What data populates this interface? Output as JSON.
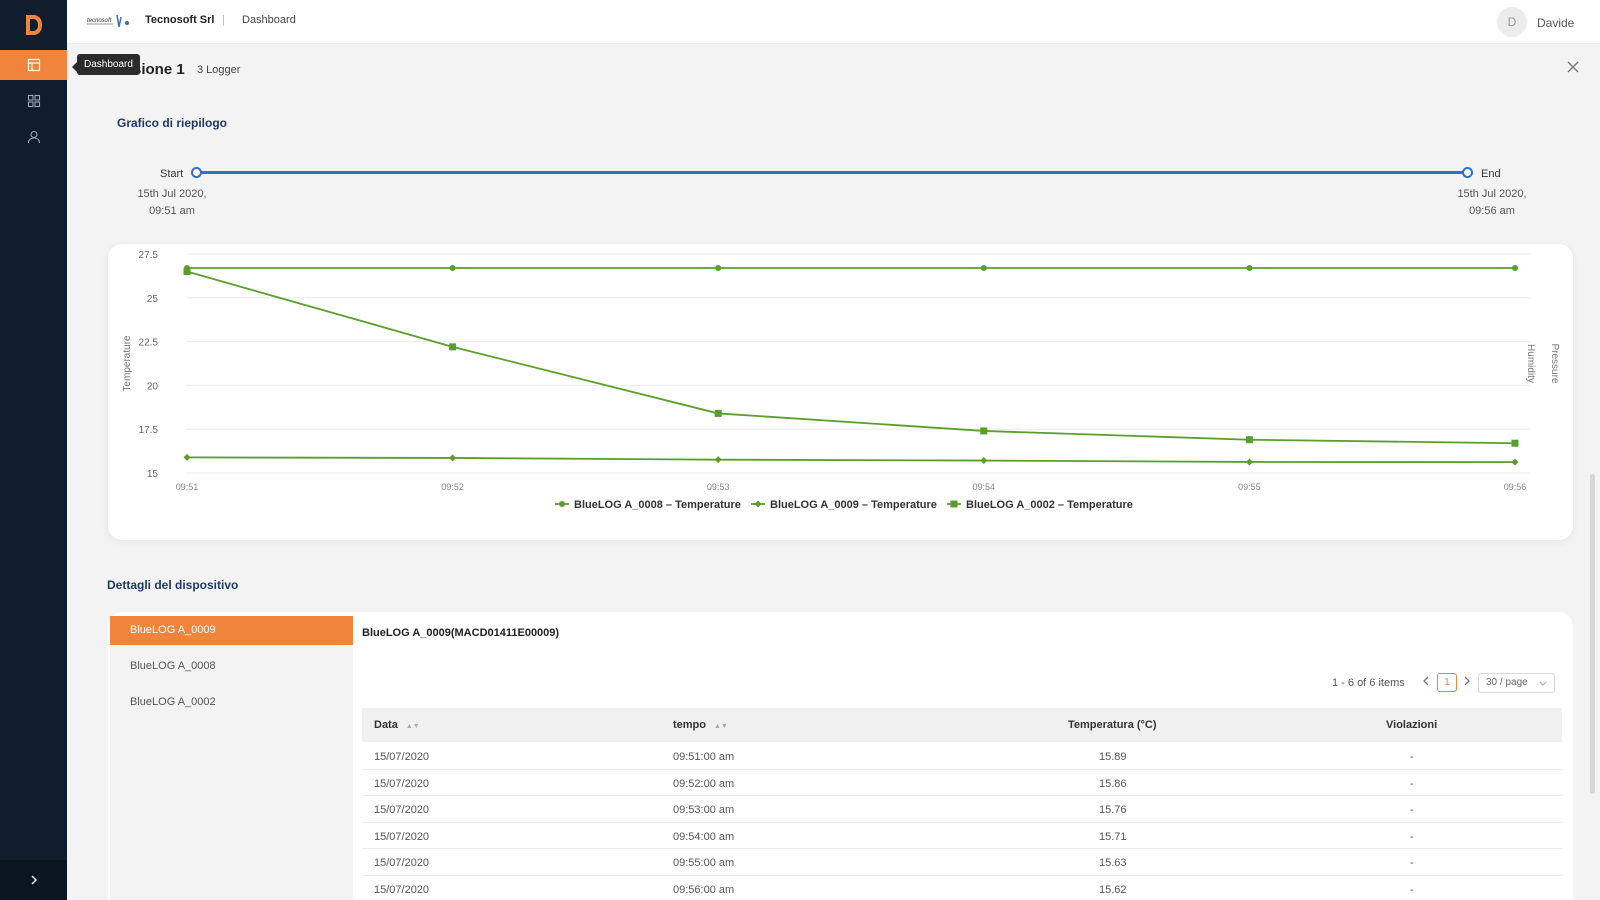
{
  "header": {
    "company": "Tecnosoft Srl",
    "separator": "|",
    "breadcrumb": "Dashboard",
    "avatar_initial": "D",
    "user_name": "Davide"
  },
  "sidebar": {
    "tooltip": "Dashboard",
    "items": [
      {
        "name": "dashboard",
        "icon": "dashboard-icon",
        "active": true
      },
      {
        "name": "grid",
        "icon": "grid-icon",
        "active": false
      },
      {
        "name": "user",
        "icon": "user-icon",
        "active": false
      }
    ],
    "expand_icon": "chevron-right-icon"
  },
  "mission": {
    "title": "Missione 1",
    "subtitle": "3 Logger"
  },
  "summary": {
    "section_title": "Grafico di riepilogo",
    "range": {
      "start_label": "Start",
      "start_date_line1": "15th Jul 2020,",
      "start_date_line2": "09:51 am",
      "end_label": "End",
      "end_date_line1": "15th Jul 2020,",
      "end_date_line2": "09:56 am"
    }
  },
  "chart_data": {
    "type": "line",
    "title": "",
    "xlabel": "",
    "ylabel": "Temperature",
    "y2label": "Humidity",
    "y3label": "Pressure",
    "x": [
      "09:51",
      "09:52",
      "09:53",
      "09:54",
      "09:55",
      "09:56"
    ],
    "yticks": [
      "15",
      "17.5",
      "20",
      "22.5",
      "25",
      "27.5"
    ],
    "ylim": [
      15,
      27.5
    ],
    "grid": true,
    "legend_position": "bottom",
    "series": [
      {
        "name": "BlueLOG A_0008 – Temperature",
        "marker": "circle",
        "color": "#5b9e2d",
        "values": [
          26.7,
          26.7,
          26.7,
          26.7,
          26.7,
          26.7
        ]
      },
      {
        "name": "BlueLOG A_0009 – Temperature",
        "marker": "diamond",
        "color": "#5b9e2d",
        "values": [
          15.89,
          15.86,
          15.76,
          15.71,
          15.63,
          15.62
        ]
      },
      {
        "name": "BlueLOG A_0002 – Temperature",
        "marker": "square",
        "color": "#5b9e2d",
        "values": [
          26.5,
          22.2,
          18.4,
          17.4,
          16.9,
          16.7
        ]
      }
    ]
  },
  "details": {
    "section_title": "Dettagli del dispositivo",
    "devices": [
      "BlueLOG A_0009",
      "BlueLOG A_0008",
      "BlueLOG A_0002"
    ],
    "selected_device_title": "BlueLOG A_0009(MACD01411E00009)",
    "pagination": {
      "info": "1 - 6 of 6 items",
      "current_page": "1",
      "page_size": "30 / page",
      "prev_icon": "chevron-left-icon",
      "next_icon": "chevron-right-icon"
    },
    "table": {
      "columns": [
        "Data",
        "tempo",
        "Temperatura (°C)",
        "Violazioni"
      ],
      "rows": [
        [
          "15/07/2020",
          "09:51:00 am",
          "15.89",
          "-"
        ],
        [
          "15/07/2020",
          "09:52:00 am",
          "15.86",
          "-"
        ],
        [
          "15/07/2020",
          "09:53:00 am",
          "15.76",
          "-"
        ],
        [
          "15/07/2020",
          "09:54:00 am",
          "15.71",
          "-"
        ],
        [
          "15/07/2020",
          "09:55:00 am",
          "15.63",
          "-"
        ],
        [
          "15/07/2020",
          "09:56:00 am",
          "15.62",
          "-"
        ]
      ]
    }
  },
  "colors": {
    "accent": "#f0843c",
    "sidebar": "#0f1d2d",
    "slider": "#2e72c4",
    "series": "#5b9e2d",
    "section_title": "#1f3a66"
  }
}
